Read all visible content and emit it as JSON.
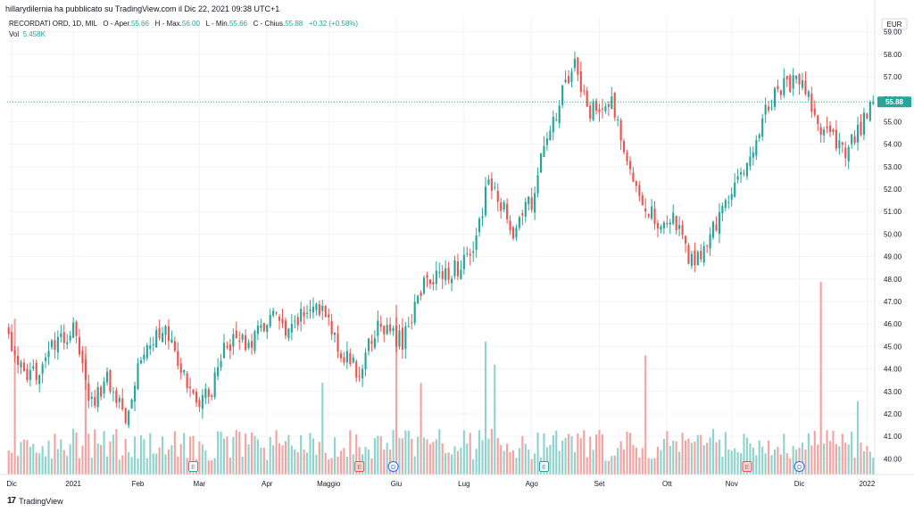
{
  "header": {
    "published": "hillarydilernia ha pubblicato su TradingView.com il Dic 22, 2021 09:38 UTC+1"
  },
  "legend": {
    "symbol": "RECORDATI ORD, 1D, MIL",
    "o_label": "O - Aper.",
    "o_value": "55.66",
    "h_label": "H - Max.",
    "h_value": "56.00",
    "l_label": "L - Min.",
    "l_value": "55.66",
    "c_label": "C - Chius.",
    "c_value": "55.88",
    "change": "+0.32 (+0.58%)",
    "vol_label": "Vol",
    "vol_value": "5.458K"
  },
  "footer": {
    "brand": "TradingView"
  },
  "colors": {
    "up": "#26a69a",
    "down": "#ef5350",
    "up_vol": "#8fd3cc",
    "down_vol": "#f4a3a1",
    "grid": "#f0f3fa",
    "axis_text": "#131722"
  },
  "chart_data": {
    "type": "candlestick",
    "title": "RECORDATI ORD, 1D, MIL",
    "currency": "EUR",
    "last_price": 55.88,
    "ylim": [
      39.3,
      59.7
    ],
    "y_ticks": [
      40.0,
      41.0,
      42.0,
      43.0,
      44.0,
      45.0,
      46.0,
      47.0,
      48.0,
      49.0,
      50.0,
      51.0,
      52.0,
      53.0,
      54.0,
      55.0,
      56.0,
      57.0,
      58.0,
      59.0
    ],
    "x_ticks": [
      {
        "label": "Dic",
        "day": 1
      },
      {
        "label": "2021",
        "day": 21
      },
      {
        "label": "Feb",
        "day": 42
      },
      {
        "label": "Mar",
        "day": 62
      },
      {
        "label": "Apr",
        "day": 84
      },
      {
        "label": "Maggio",
        "day": 104
      },
      {
        "label": "Giu",
        "day": 126
      },
      {
        "label": "Lug",
        "day": 148
      },
      {
        "label": "Ago",
        "day": 170
      },
      {
        "label": "Set",
        "day": 192
      },
      {
        "label": "Ott",
        "day": 214
      },
      {
        "label": "Nov",
        "day": 235
      },
      {
        "label": "Dic",
        "day": 257
      },
      {
        "label": "2022",
        "day": 279
      }
    ],
    "anchors": [
      {
        "day": 0,
        "close": 45.4
      },
      {
        "day": 6,
        "close": 43.3
      },
      {
        "day": 12,
        "close": 44.6
      },
      {
        "day": 22,
        "close": 45.8
      },
      {
        "day": 26,
        "close": 42.3
      },
      {
        "day": 32,
        "close": 43.6
      },
      {
        "day": 38,
        "close": 42.0
      },
      {
        "day": 43,
        "close": 44.6
      },
      {
        "day": 50,
        "close": 45.9
      },
      {
        "day": 56,
        "close": 44.0
      },
      {
        "day": 60,
        "close": 42.6
      },
      {
        "day": 66,
        "close": 43.0
      },
      {
        "day": 70,
        "close": 45.2
      },
      {
        "day": 80,
        "close": 45.3
      },
      {
        "day": 86,
        "close": 46.6
      },
      {
        "day": 90,
        "close": 45.3
      },
      {
        "day": 98,
        "close": 46.9
      },
      {
        "day": 104,
        "close": 46.2
      },
      {
        "day": 108,
        "close": 44.8
      },
      {
        "day": 114,
        "close": 43.8
      },
      {
        "day": 120,
        "close": 46.0
      },
      {
        "day": 128,
        "close": 45.2
      },
      {
        "day": 134,
        "close": 47.6
      },
      {
        "day": 140,
        "close": 48.2
      },
      {
        "day": 150,
        "close": 48.8
      },
      {
        "day": 156,
        "close": 52.3
      },
      {
        "day": 164,
        "close": 50.2
      },
      {
        "day": 170,
        "close": 51.5
      },
      {
        "day": 176,
        "close": 54.8
      },
      {
        "day": 184,
        "close": 57.6
      },
      {
        "day": 188,
        "close": 55.4
      },
      {
        "day": 196,
        "close": 55.8
      },
      {
        "day": 204,
        "close": 52.2
      },
      {
        "day": 210,
        "close": 50.6
      },
      {
        "day": 216,
        "close": 50.6
      },
      {
        "day": 222,
        "close": 48.7
      },
      {
        "day": 228,
        "close": 49.8
      },
      {
        "day": 234,
        "close": 51.8
      },
      {
        "day": 240,
        "close": 52.8
      },
      {
        "day": 246,
        "close": 55.8
      },
      {
        "day": 252,
        "close": 56.6
      },
      {
        "day": 258,
        "close": 56.8
      },
      {
        "day": 262,
        "close": 55.0
      },
      {
        "day": 266,
        "close": 54.4
      },
      {
        "day": 272,
        "close": 53.5
      },
      {
        "day": 278,
        "close": 55.0
      },
      {
        "day": 281,
        "close": 55.88
      }
    ],
    "volume_spikes": [
      {
        "day": 2,
        "level": 0.34
      },
      {
        "day": 25,
        "level": 0.28
      },
      {
        "day": 102,
        "level": 0.2
      },
      {
        "day": 126,
        "level": 0.37
      },
      {
        "day": 134,
        "level": 0.2
      },
      {
        "day": 155,
        "level": 0.29
      },
      {
        "day": 158,
        "level": 0.24
      },
      {
        "day": 207,
        "level": 0.26
      },
      {
        "day": 264,
        "level": 0.42
      },
      {
        "day": 276,
        "level": 0.16
      }
    ],
    "events": [
      {
        "type": "E",
        "day": 60,
        "tone": "up"
      },
      {
        "type": "E",
        "day": 114,
        "tone": "down"
      },
      {
        "type": "D",
        "day": 125,
        "tone": "info"
      },
      {
        "type": "E",
        "day": 174,
        "tone": "up"
      },
      {
        "type": "E",
        "day": 240,
        "tone": "down"
      },
      {
        "type": "D",
        "day": 257,
        "tone": "info"
      }
    ]
  }
}
